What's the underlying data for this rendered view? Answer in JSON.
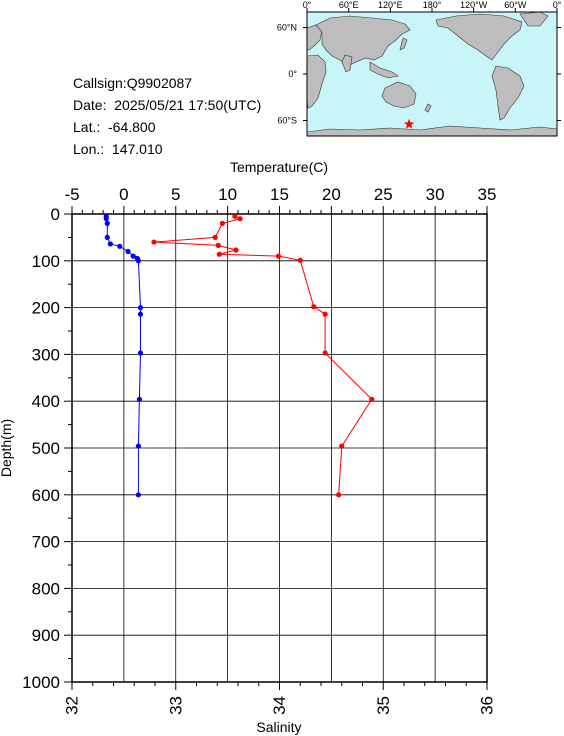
{
  "info": {
    "callsign": "Callsign:Q9902087",
    "date": "Date:  2025/05/21 17:50(UTC)",
    "lat": "Lat.:  -64.800",
    "lon": "Lon.:  147.010"
  },
  "map": {
    "lon_labels": [
      "0°",
      "60°E",
      "120°E",
      "180°",
      "120°W",
      "60°W",
      "0°"
    ],
    "lat_labels": [
      "60°N",
      "0°",
      "60°S"
    ],
    "ocean_color": "#c8f5f8",
    "land_color": "#bdbdbd",
    "marker_color": "#ff0000",
    "marker_lon": 147.01,
    "marker_lat": -64.8
  },
  "chart_data": {
    "type": "line",
    "title": "",
    "top_axis_label": "Temperature(C)",
    "bottom_axis_label": "Salinity",
    "ylabel": "Depth(m)",
    "temperature_ticks": [
      "-5",
      "0",
      "5",
      "10",
      "15",
      "20",
      "25",
      "30",
      "35"
    ],
    "salinity_ticks": [
      "32",
      "33",
      "34",
      "35",
      "36"
    ],
    "depth_ticks": [
      "0",
      "100",
      "200",
      "300",
      "400",
      "500",
      "600",
      "700",
      "800",
      "900",
      "1000"
    ],
    "temperature_range": [
      -5,
      35
    ],
    "salinity_range": [
      32,
      36
    ],
    "depth_range": [
      0,
      1000
    ],
    "grid": true,
    "series": [
      {
        "axis": "temperature",
        "color": "#ff0000",
        "points": [
          {
            "x": 10.7,
            "y": 5
          },
          {
            "x": 11.2,
            "y": 10
          },
          {
            "x": 9.5,
            "y": 20
          },
          {
            "x": 8.8,
            "y": 50
          },
          {
            "x": 2.9,
            "y": 60
          },
          {
            "x": 9.1,
            "y": 67
          },
          {
            "x": 10.8,
            "y": 77
          },
          {
            "x": 9.2,
            "y": 86
          },
          {
            "x": 14.9,
            "y": 90
          },
          {
            "x": 17.0,
            "y": 99
          },
          {
            "x": 18.3,
            "y": 198
          },
          {
            "x": 19.4,
            "y": 214
          },
          {
            "x": 19.4,
            "y": 297
          },
          {
            "x": 23.9,
            "y": 396
          },
          {
            "x": 21.0,
            "y": 496
          },
          {
            "x": 20.7,
            "y": 600
          }
        ]
      },
      {
        "axis": "salinity",
        "color": "#0000ff",
        "points": [
          {
            "x": 32.33,
            "y": 5
          },
          {
            "x": 32.33,
            "y": 10
          },
          {
            "x": 32.34,
            "y": 20
          },
          {
            "x": 32.34,
            "y": 50
          },
          {
            "x": 32.37,
            "y": 64
          },
          {
            "x": 32.46,
            "y": 69
          },
          {
            "x": 32.54,
            "y": 80
          },
          {
            "x": 32.59,
            "y": 90
          },
          {
            "x": 32.63,
            "y": 95
          },
          {
            "x": 32.64,
            "y": 100
          },
          {
            "x": 32.66,
            "y": 200
          },
          {
            "x": 32.66,
            "y": 214
          },
          {
            "x": 32.66,
            "y": 297
          },
          {
            "x": 32.65,
            "y": 396
          },
          {
            "x": 32.64,
            "y": 496
          },
          {
            "x": 32.64,
            "y": 600
          }
        ]
      }
    ]
  }
}
